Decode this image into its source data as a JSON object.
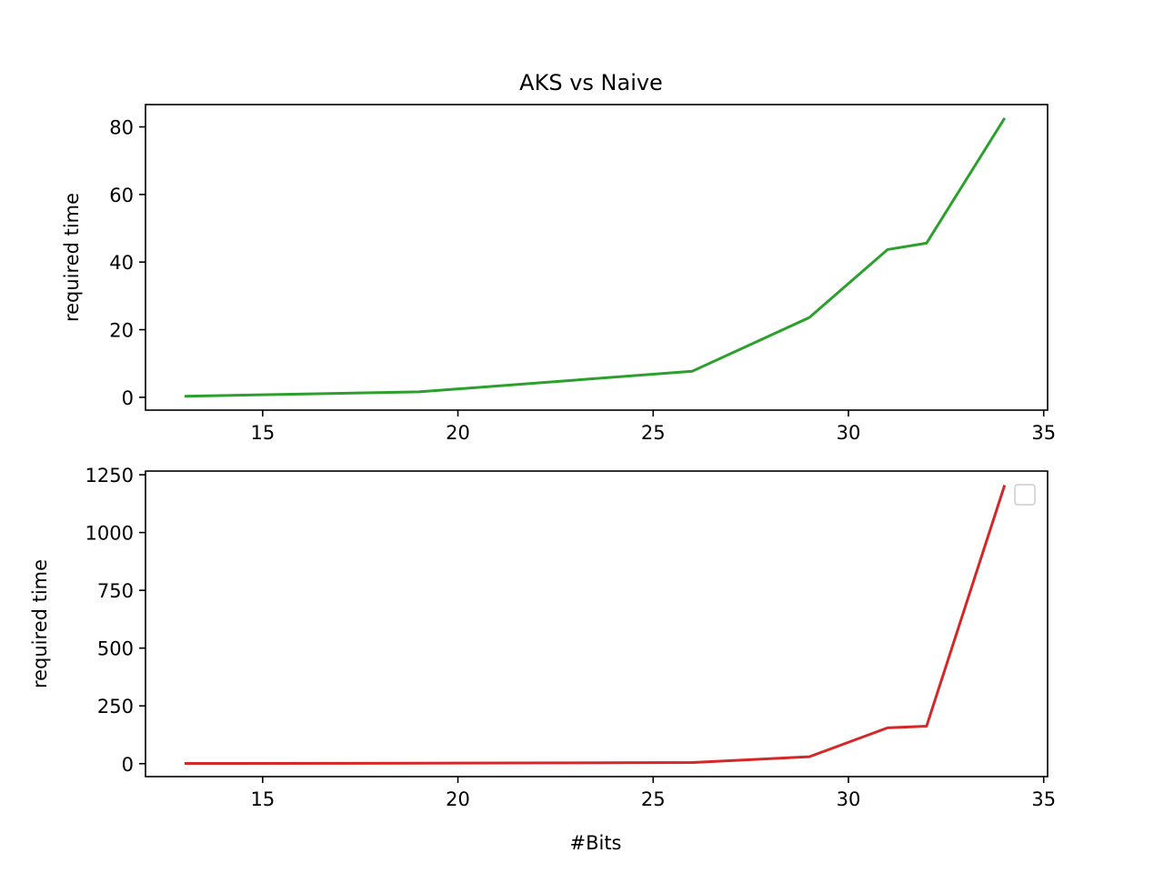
{
  "figure": {
    "title": "AKS vs Naive"
  },
  "chart_data": [
    {
      "type": "line",
      "title": "AKS vs Naive",
      "xlabel": "",
      "ylabel": "required time",
      "xlim": [
        12,
        35.1
      ],
      "ylim": [
        -3.8,
        86.6
      ],
      "xticks": [
        15,
        20,
        25,
        30,
        35
      ],
      "yticks": [
        0,
        20,
        40,
        60,
        80
      ],
      "grid": false,
      "legend": "none",
      "series": [
        {
          "color": "#2ca02c",
          "x": [
            13,
            19,
            26,
            29,
            31,
            32,
            34
          ],
          "y": [
            0.3,
            1.6,
            7.7,
            23.6,
            43.7,
            45.6,
            82.6
          ]
        }
      ]
    },
    {
      "type": "line",
      "title": "",
      "xlabel": "#Bits",
      "ylabel": "required time",
      "xlim": [
        12,
        35.1
      ],
      "ylim": [
        -56,
        1266
      ],
      "xticks": [
        15,
        20,
        25,
        30,
        35
      ],
      "yticks": [
        0,
        250,
        500,
        750,
        1000,
        1250
      ],
      "grid": false,
      "legend": "top-right (empty)",
      "series": [
        {
          "color": "#d62728",
          "x": [
            13,
            19,
            26,
            29,
            31,
            32,
            34
          ],
          "y": [
            1,
            2,
            5,
            30,
            155,
            162,
            1205
          ]
        }
      ]
    }
  ]
}
